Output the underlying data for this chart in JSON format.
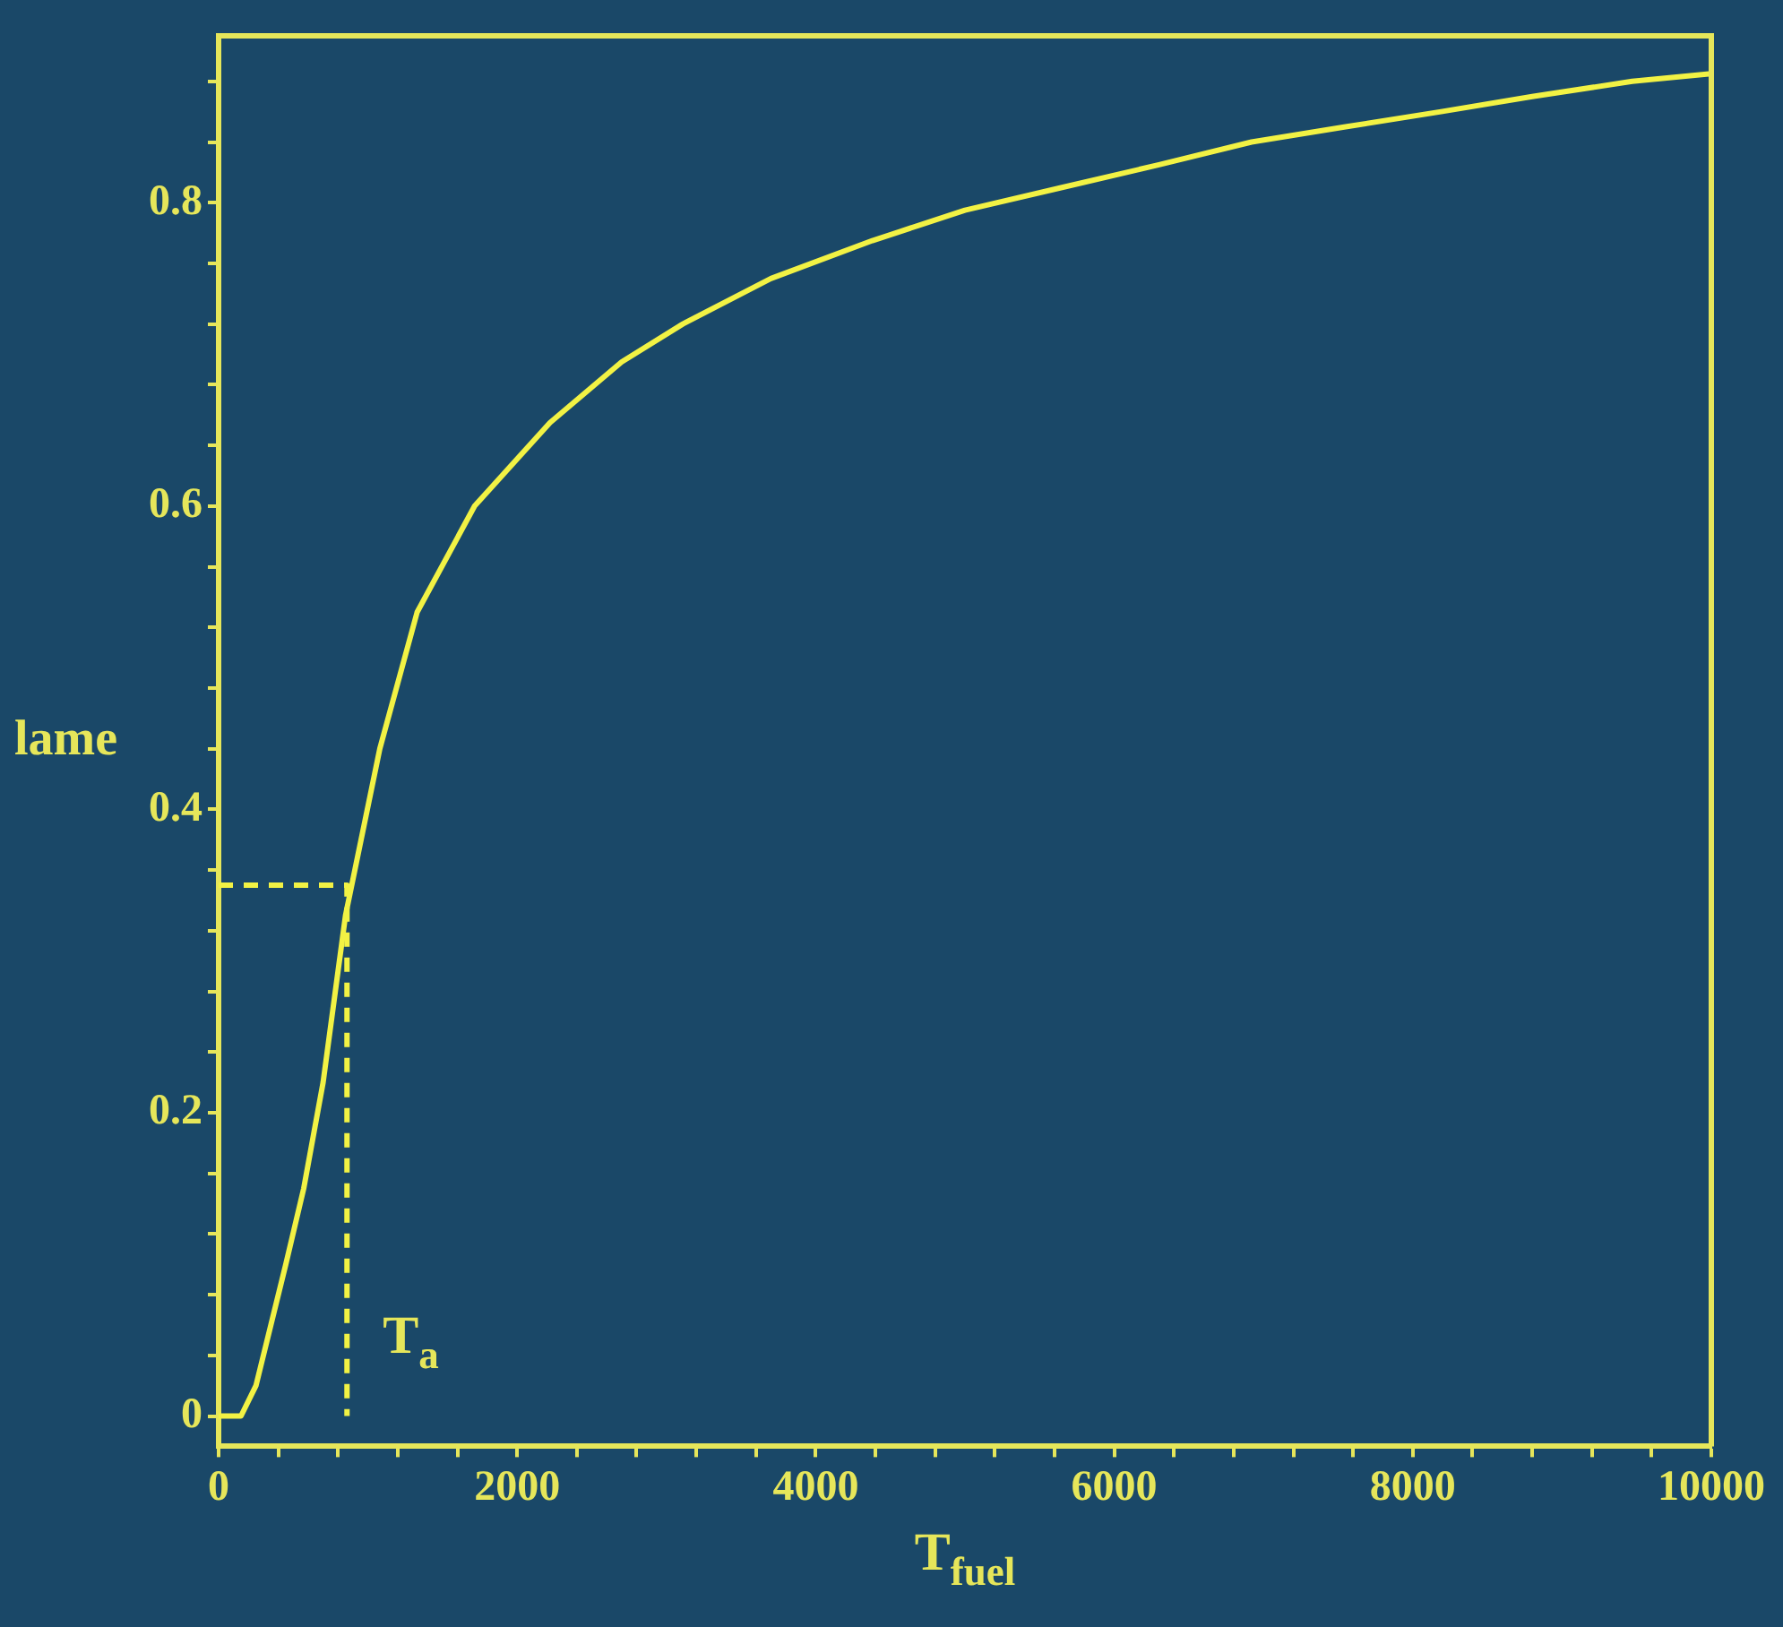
{
  "chart_data": {
    "type": "line",
    "xlabel": "T$_{fuel}$",
    "ylabel": "lame",
    "xlim": [
      0,
      10000
    ],
    "ylim": [
      -0.02,
      0.91
    ],
    "xticks": [
      0,
      {
        "value": 400,
        "label": null
      },
      {
        "value": 800,
        "label": null
      },
      {
        "value": 1200,
        "label": null
      },
      {
        "value": 1600,
        "label": null
      },
      2000,
      {
        "value": 2400,
        "label": null
      },
      {
        "value": 2800,
        "label": null
      },
      {
        "value": 3200,
        "label": null
      },
      {
        "value": 3600,
        "label": null
      },
      4000,
      {
        "value": 4400,
        "label": null
      },
      {
        "value": 4800,
        "label": null
      },
      {
        "value": 5200,
        "label": null
      },
      {
        "value": 5600,
        "label": null
      },
      6000,
      {
        "value": 6400,
        "label": null
      },
      {
        "value": 6800,
        "label": null
      },
      {
        "value": 7200,
        "label": null
      },
      {
        "value": 7600,
        "label": null
      },
      8000,
      {
        "value": 8400,
        "label": null
      },
      {
        "value": 8800,
        "label": null
      },
      {
        "value": 9200,
        "label": null
      },
      {
        "value": 9600,
        "label": null
      },
      10000
    ],
    "yticks": [
      0,
      {
        "value": 0.04,
        "label": null
      },
      {
        "value": 0.08,
        "label": null
      },
      {
        "value": 0.12,
        "label": null
      },
      {
        "value": 0.16,
        "label": null
      },
      0.2,
      {
        "value": 0.24,
        "label": null
      },
      {
        "value": 0.28,
        "label": null
      },
      {
        "value": 0.32,
        "label": null
      },
      {
        "value": 0.36,
        "label": null
      },
      0.4,
      {
        "value": 0.44,
        "label": null
      },
      {
        "value": 0.48,
        "label": null
      },
      {
        "value": 0.52,
        "label": null
      },
      {
        "value": 0.56,
        "label": null
      },
      0.6,
      {
        "value": 0.64,
        "label": null
      },
      {
        "value": 0.68,
        "label": null
      },
      {
        "value": 0.72,
        "label": null
      },
      {
        "value": 0.76,
        "label": null
      },
      0.8,
      {
        "value": 0.84,
        "label": null
      },
      {
        "value": 0.88,
        "label": null
      }
    ],
    "grid": false,
    "legend": false,
    "marker": "none",
    "series": [
      {
        "color": "#f2f244",
        "line_style": "solid",
        "x": [
          0,
          150,
          250,
          350,
          450,
          570,
          700,
          850,
          1080,
          1330,
          1715,
          2220,
          2700,
          3110,
          3700,
          4380,
          5000,
          5650,
          6300,
          6920,
          7550,
          8190,
          8800,
          9470,
          10000
        ],
        "values": [
          0,
          0,
          0.02,
          0.06,
          0.1,
          0.15,
          0.22,
          0.33,
          0.44,
          0.53,
          0.6,
          0.655,
          0.695,
          0.72,
          0.75,
          0.775,
          0.795,
          0.81,
          0.825,
          0.84,
          0.85,
          0.86,
          0.87,
          0.88,
          0.885
        ]
      },
      {
        "color": "#f2f244",
        "line_style": "dashed",
        "x": [
          0,
          860,
          860
        ],
        "values": [
          0.35,
          0.35,
          0
        ]
      }
    ],
    "annotations": [
      "T$_{a}$"
    ]
  }
}
